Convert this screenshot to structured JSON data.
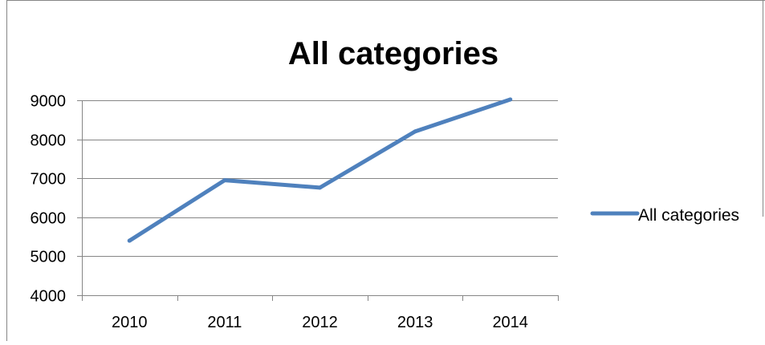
{
  "chart_data": {
    "type": "line",
    "title": "All categories",
    "xlabel": "",
    "ylabel": "",
    "categories": [
      "2010",
      "2011",
      "2012",
      "2013",
      "2014"
    ],
    "series": [
      {
        "name": "All categories",
        "values": [
          5400,
          6950,
          6760,
          8200,
          9020
        ],
        "color": "#4f81bd"
      }
    ],
    "ylim": [
      4000,
      9000
    ],
    "yticks": [
      4000,
      5000,
      6000,
      7000,
      8000,
      9000
    ],
    "grid": true,
    "legend_position": "right"
  }
}
